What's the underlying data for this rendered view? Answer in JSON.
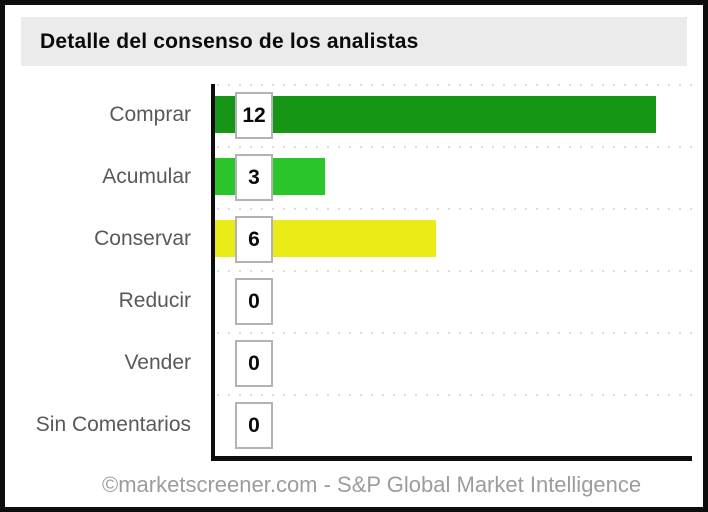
{
  "header": {
    "title": "Detalle del consenso de los analistas"
  },
  "chart_data": {
    "type": "bar",
    "orientation": "horizontal",
    "title": "Detalle del consenso de los analistas",
    "categories": [
      "Comprar",
      "Acumular",
      "Conservar",
      "Reducir",
      "Vender",
      "Sin Comentarios"
    ],
    "values": [
      12,
      3,
      6,
      0,
      0,
      0
    ],
    "bar_colors": [
      "#169516",
      "#2bc52b",
      "#e9ec16",
      null,
      null,
      null
    ],
    "xlim": [
      0,
      13
    ],
    "xlabel": "",
    "ylabel": "",
    "legend": false,
    "grid": "dotted horizontal row separators",
    "value_label_style": "boxed number at bar start"
  },
  "style_colors": {
    "title_bar_bg": "#ebebeb",
    "category_label": "#595959",
    "value_box_border": "#b3b3b3",
    "gridline": "#dcdcdc",
    "axis": "#0d0d0d",
    "footer_text": "#9c9c9c"
  },
  "footer": {
    "credit": "©marketscreener.com - S&P Global Market Intelligence"
  }
}
